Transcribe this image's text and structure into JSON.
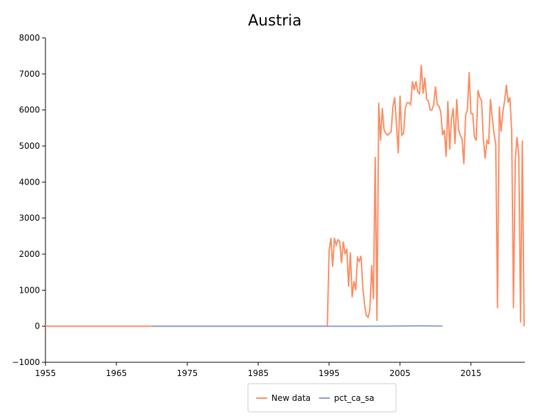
{
  "chart_data": {
    "type": "line",
    "title": "Austria",
    "xlim": [
      1955,
      2022.6
    ],
    "xticks": [
      1955,
      1965,
      1975,
      1985,
      1995,
      2005,
      2015
    ],
    "ylim": [
      -1000,
      8000
    ],
    "yticks": [
      {
        "value": -1000,
        "label": "−1000"
      },
      0,
      1000,
      2000,
      3000,
      4000,
      5000,
      6000,
      7000,
      8000
    ],
    "legend": "bottom",
    "series": [
      {
        "name": "New data",
        "color": "#fc8d62",
        "x": [
          1955,
          1994.75,
          1995,
          1995.25,
          1995.5,
          1995.75,
          1996,
          1996.25,
          1996.5,
          1996.75,
          1997,
          1997.25,
          1997.5,
          1997.75,
          1998,
          1998.25,
          1998.5,
          1998.75,
          1999,
          1999.25,
          1999.5,
          1999.75,
          2000,
          2000.25,
          2000.5,
          2000.75,
          2001,
          2001.25,
          2001.5,
          2001.75,
          2002,
          2002.25,
          2002.5,
          2002.75,
          2003,
          2003.25,
          2003.5,
          2003.75,
          2004,
          2004.25,
          2004.5,
          2004.75,
          2005,
          2005.25,
          2005.5,
          2005.75,
          2006,
          2006.25,
          2006.5,
          2006.75,
          2007,
          2007.25,
          2007.5,
          2007.75,
          2008,
          2008.25,
          2008.5,
          2008.75,
          2009,
          2009.25,
          2009.5,
          2009.75,
          2010,
          2010.25,
          2010.5,
          2010.75,
          2011,
          2011.25,
          2011.5,
          2011.75,
          2012,
          2012.25,
          2012.5,
          2012.75,
          2013,
          2013.25,
          2013.5,
          2013.75,
          2014,
          2014.25,
          2014.5,
          2014.75,
          2015,
          2015.25,
          2015.5,
          2015.75,
          2016,
          2016.25,
          2016.5,
          2016.75,
          2017,
          2017.25,
          2017.5,
          2017.75,
          2018,
          2018.25,
          2018.5,
          2018.75,
          2019,
          2019.25,
          2019.5,
          2019.75,
          2020,
          2020.25,
          2020.5,
          2020.75,
          2021,
          2021.25,
          2021.5,
          2021.75,
          2022,
          2022.25,
          2022.5
        ],
        "values": [
          0,
          0,
          2100,
          2450,
          1650,
          2450,
          2250,
          2400,
          2350,
          1750,
          2350,
          2000,
          2150,
          1100,
          2050,
          800,
          1250,
          1000,
          1900,
          1800,
          1950,
          1100,
          600,
          300,
          250,
          450,
          1700,
          750,
          4700,
          150,
          6200,
          5150,
          6050,
          5450,
          5350,
          5300,
          5350,
          5400,
          6100,
          6350,
          5600,
          4800,
          6400,
          5300,
          5350,
          6050,
          6200,
          6200,
          6150,
          6800,
          6550,
          6800,
          6500,
          6450,
          7250,
          6450,
          6900,
          6300,
          6250,
          6000,
          6000,
          6150,
          6650,
          6150,
          6100,
          5950,
          5300,
          5450,
          4700,
          6250,
          4900,
          5750,
          6050,
          5050,
          6300,
          5450,
          5300,
          5200,
          4500,
          5850,
          6000,
          7050,
          5900,
          5900,
          5250,
          5150,
          6550,
          6350,
          6250,
          5200,
          4650,
          5150,
          5050,
          6300,
          5800,
          5350,
          5050,
          500,
          6100,
          5400,
          5950,
          6250,
          6700,
          6200,
          6350,
          5400,
          500,
          4600,
          5250,
          4750,
          100,
          5150,
          0
        ]
      },
      {
        "name": "pct_ca_sa",
        "color": "#8da0cb",
        "x": [
          1970,
          1980,
          1990,
          2000,
          2005,
          2008,
          2011
        ],
        "values": [
          0,
          0,
          0,
          0,
          5,
          10,
          5
        ]
      }
    ]
  }
}
